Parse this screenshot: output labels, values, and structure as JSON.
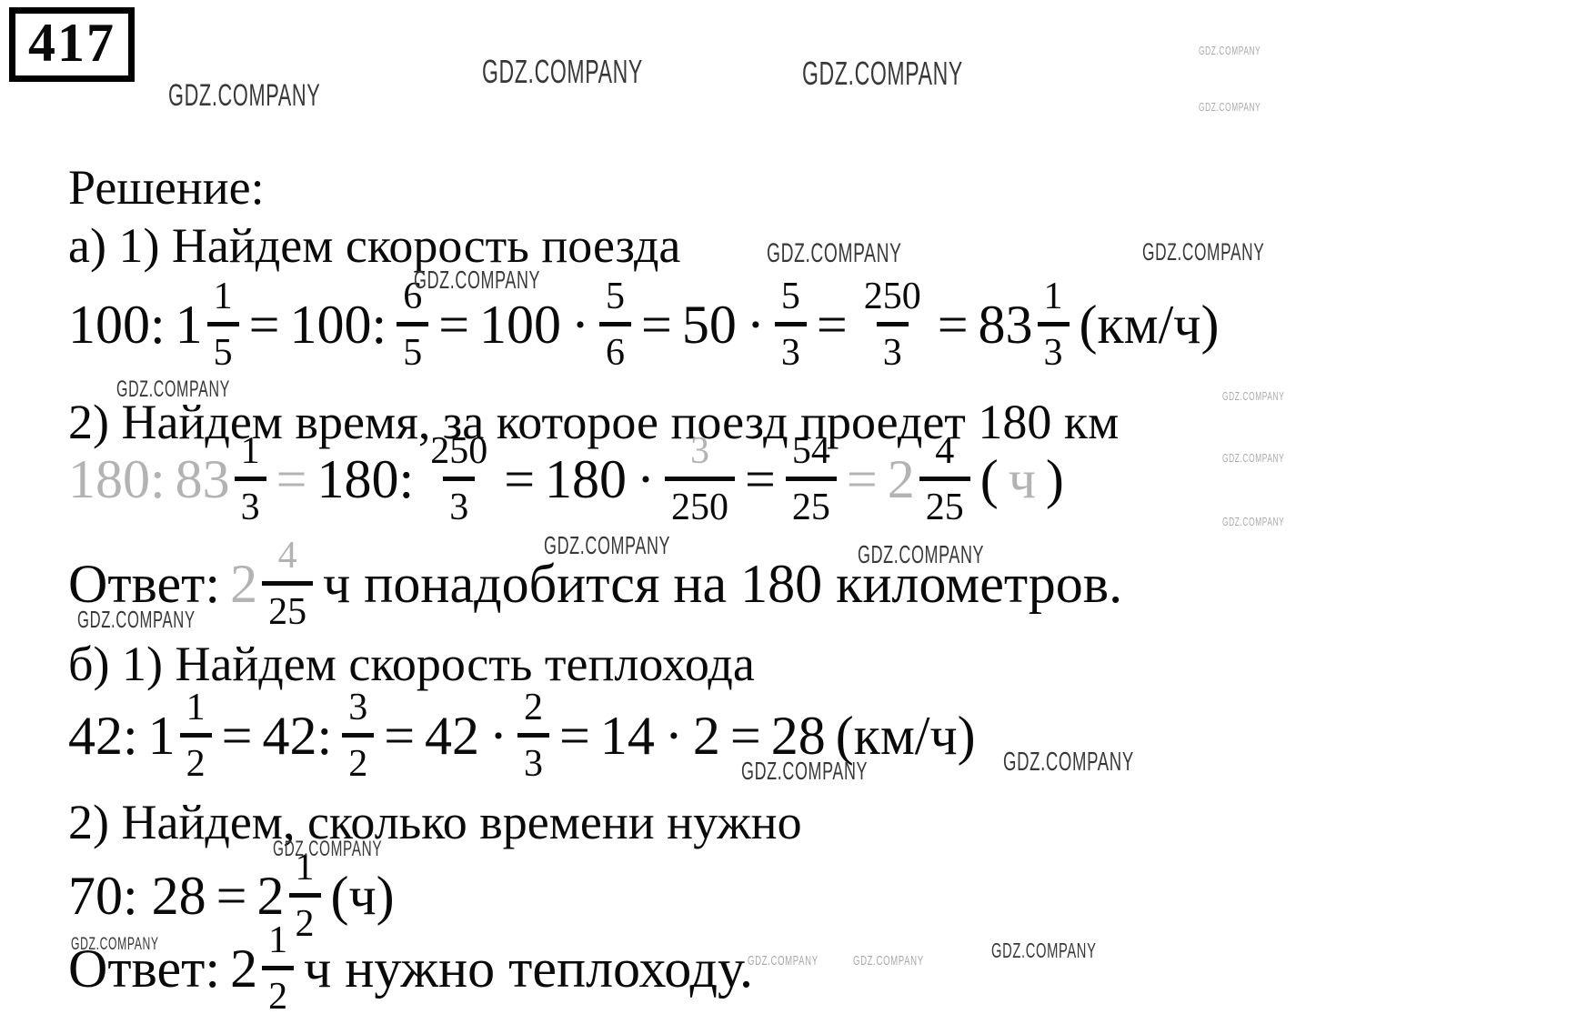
{
  "problem_number": "417",
  "watermark": {
    "text": "GDZ.COMPANY"
  },
  "colors": {
    "ink": "#0a0a0a",
    "faded_ink": "#b3b3b3",
    "watermark_dark": "#383838",
    "watermark_light": "#a9a9a9"
  },
  "content": {
    "blocks": [
      {
        "kind": "text",
        "name": "solution-heading",
        "text": "Решение:"
      },
      {
        "kind": "text",
        "name": "step-a1-label",
        "text": "а) 1) Найдем скорость поезда"
      },
      {
        "kind": "equation",
        "name": "equation-a1",
        "tokens": [
          {
            "t": "txt",
            "v": "100:"
          },
          {
            "t": "mix",
            "w": "1",
            "n": "1",
            "d": "5"
          },
          {
            "t": "txt",
            "v": "="
          },
          {
            "t": "txt",
            "v": "100:"
          },
          {
            "t": "frac",
            "n": "6",
            "d": "5"
          },
          {
            "t": "txt",
            "v": "="
          },
          {
            "t": "txt",
            "v": "100"
          },
          {
            "t": "txt",
            "v": "·"
          },
          {
            "t": "frac",
            "n": "5",
            "d": "6"
          },
          {
            "t": "txt",
            "v": "="
          },
          {
            "t": "txt",
            "v": "50"
          },
          {
            "t": "txt",
            "v": "·"
          },
          {
            "t": "frac",
            "n": "5",
            "d": "3"
          },
          {
            "t": "txt",
            "v": "="
          },
          {
            "t": "frac",
            "n": "250",
            "d": "3"
          },
          {
            "t": "txt",
            "v": "="
          },
          {
            "t": "mix",
            "w": "83",
            "n": "1",
            "d": "3"
          },
          {
            "t": "txt",
            "v": "(км/ч)"
          }
        ]
      },
      {
        "kind": "text",
        "name": "step-a2-label",
        "text": "2) Найдем время, за которое поезд проедет 180 км"
      },
      {
        "kind": "equation",
        "name": "equation-a2",
        "tokens": [
          {
            "t": "txt",
            "v": "180:",
            "f": true
          },
          {
            "t": "mix",
            "w": "83",
            "wf": true,
            "n": "1",
            "d": "3"
          },
          {
            "t": "txt",
            "v": "=",
            "f": true
          },
          {
            "t": "txt",
            "v": "180:"
          },
          {
            "t": "frac",
            "n": "250",
            "d": "3"
          },
          {
            "t": "txt",
            "v": "="
          },
          {
            "t": "txt",
            "v": "180"
          },
          {
            "t": "txt",
            "v": "·"
          },
          {
            "t": "frac",
            "n": "3",
            "nf": true,
            "d": "250"
          },
          {
            "t": "txt",
            "v": "="
          },
          {
            "t": "frac",
            "n": "54",
            "d": "25"
          },
          {
            "t": "txt",
            "v": "=",
            "f": true
          },
          {
            "t": "mix",
            "w": "2",
            "wf": true,
            "n": "4",
            "d": "25"
          },
          {
            "t": "txt",
            "v": "("
          },
          {
            "t": "txt",
            "v": "ч",
            "f": true
          },
          {
            "t": "txt",
            "v": ")"
          }
        ]
      },
      {
        "kind": "equation",
        "name": "answer-a",
        "tokens": [
          {
            "t": "txt",
            "v": "Ответ:"
          },
          {
            "t": "mix",
            "w": "2",
            "wf": true,
            "n": "4",
            "nf": true,
            "d": "25"
          },
          {
            "t": "txt",
            "v": "ч понадобится на 180 километров."
          }
        ]
      },
      {
        "kind": "text",
        "name": "step-b1-label",
        "text": "б) 1) Найдем скорость теплохода"
      },
      {
        "kind": "equation",
        "name": "equation-b1",
        "tokens": [
          {
            "t": "txt",
            "v": "42:"
          },
          {
            "t": "mix",
            "w": "1",
            "n": "1",
            "d": "2"
          },
          {
            "t": "txt",
            "v": "="
          },
          {
            "t": "txt",
            "v": "42:"
          },
          {
            "t": "frac",
            "n": "3",
            "d": "2"
          },
          {
            "t": "txt",
            "v": "="
          },
          {
            "t": "txt",
            "v": "42"
          },
          {
            "t": "txt",
            "v": "·"
          },
          {
            "t": "frac",
            "n": "2",
            "d": "3"
          },
          {
            "t": "txt",
            "v": "="
          },
          {
            "t": "txt",
            "v": "14"
          },
          {
            "t": "txt",
            "v": "·"
          },
          {
            "t": "txt",
            "v": "2"
          },
          {
            "t": "txt",
            "v": "="
          },
          {
            "t": "txt",
            "v": "28"
          },
          {
            "t": "txt",
            "v": "(км/ч)"
          }
        ]
      },
      {
        "kind": "text",
        "name": "step-b2-label",
        "text": "2) Найдем, сколько времени нужно"
      },
      {
        "kind": "equation",
        "name": "equation-b2",
        "tokens": [
          {
            "t": "txt",
            "v": "70: 28"
          },
          {
            "t": "txt",
            "v": "="
          },
          {
            "t": "mix",
            "w": "2",
            "n": "1",
            "d": "2"
          },
          {
            "t": "txt",
            "v": "(ч)"
          }
        ]
      },
      {
        "kind": "equation",
        "name": "answer-b",
        "tokens": [
          {
            "t": "txt",
            "v": "Ответ:"
          },
          {
            "t": "mix",
            "w": "2",
            "n": "1",
            "d": "2"
          },
          {
            "t": "txt",
            "v": "ч нужно теплоходу."
          }
        ]
      }
    ]
  }
}
